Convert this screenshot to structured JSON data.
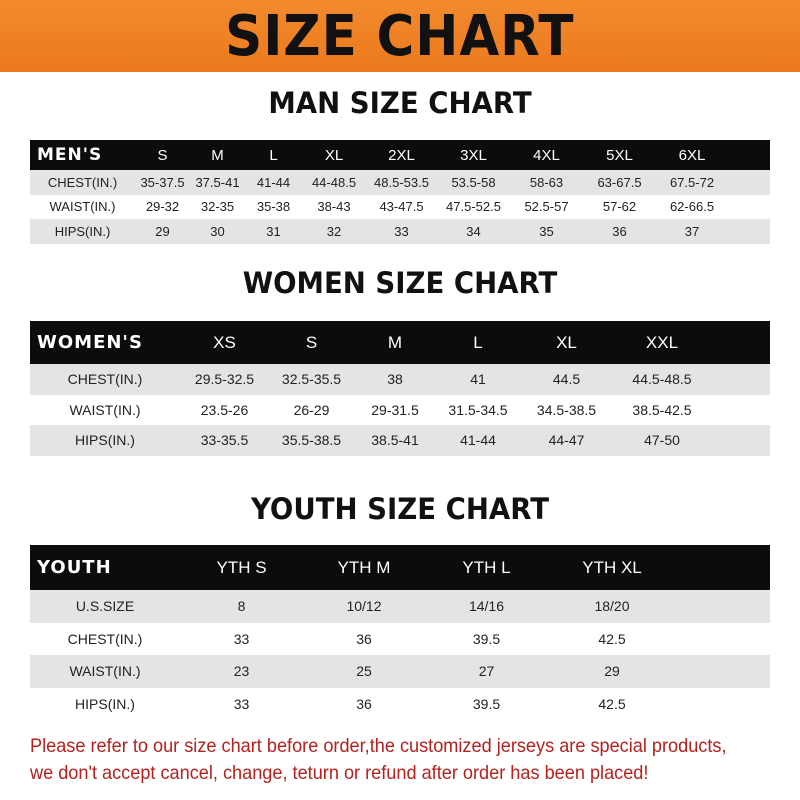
{
  "banner_title": "SIZE CHART",
  "men": {
    "title": "MAN SIZE CHART",
    "header": [
      "MEN'S",
      "S",
      "M",
      "L",
      "XL",
      "2XL",
      "3XL",
      "4XL",
      "5XL",
      "6XL"
    ],
    "rows": [
      [
        "CHEST(IN.)",
        "35-37.5",
        "37.5-41",
        "41-44",
        "44-48.5",
        "48.5-53.5",
        "53.5-58",
        "58-63",
        "63-67.5",
        "67.5-72"
      ],
      [
        "WAIST(IN.)",
        "29-32",
        "32-35",
        "35-38",
        "38-43",
        "43-47.5",
        "47.5-52.5",
        "52.5-57",
        "57-62",
        "62-66.5"
      ],
      [
        "HIPS(IN.)",
        "29",
        "30",
        "31",
        "32",
        "33",
        "34",
        "35",
        "36",
        "37"
      ]
    ]
  },
  "women": {
    "title": "WOMEN SIZE CHART",
    "header": [
      "WOMEN'S",
      "XS",
      "S",
      "M",
      "L",
      "XL",
      "XXL"
    ],
    "rows": [
      [
        "CHEST(IN.)",
        "29.5-32.5",
        "32.5-35.5",
        "38",
        "41",
        "44.5",
        "44.5-48.5"
      ],
      [
        "WAIST(IN.)",
        "23.5-26",
        "26-29",
        "29-31.5",
        "31.5-34.5",
        "34.5-38.5",
        "38.5-42.5"
      ],
      [
        "HIPS(IN.)",
        "33-35.5",
        "35.5-38.5",
        "38.5-41",
        "41-44",
        "44-47",
        "47-50"
      ]
    ]
  },
  "youth": {
    "title": "YOUTH SIZE CHART",
    "header": [
      "YOUTH",
      "YTH S",
      "YTH M",
      "YTH L",
      "YTH XL"
    ],
    "rows": [
      [
        "U.S.SIZE",
        "8",
        "10/12",
        "14/16",
        "18/20"
      ],
      [
        "CHEST(IN.)",
        "33",
        "36",
        "39.5",
        "42.5"
      ],
      [
        "WAIST(IN.)",
        "23",
        "25",
        "27",
        "29"
      ],
      [
        "HIPS(IN.)",
        "33",
        "36",
        "39.5",
        "42.5"
      ]
    ]
  },
  "note": {
    "line1": "Please refer to our size chart before order,the customized jerseys are special products,",
    "line2": "we don't accept cancel, change, teturn or refund after order has been placed!"
  }
}
